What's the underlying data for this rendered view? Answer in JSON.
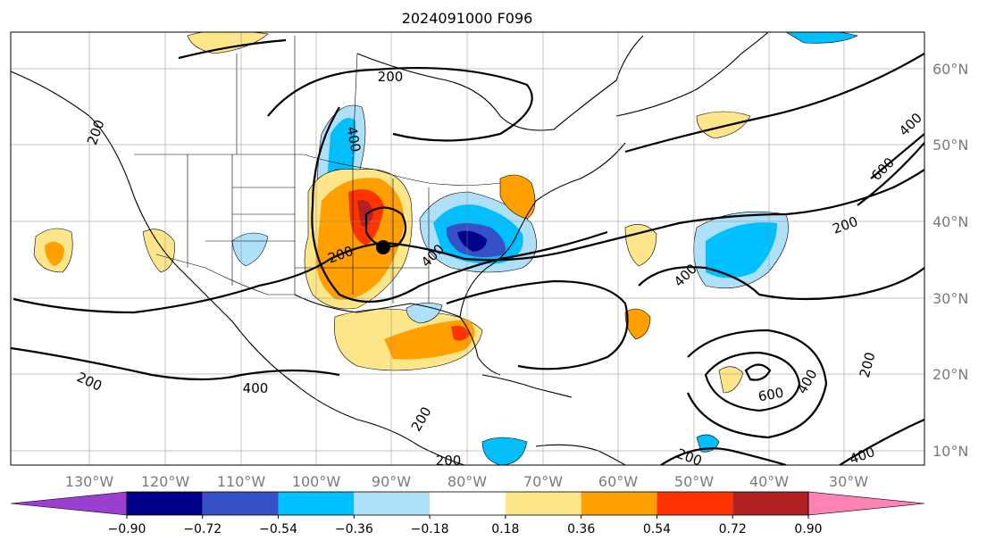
{
  "title": "2024091000 F096",
  "lon_ticks": [
    "130°W",
    "120°W",
    "110°W",
    "100°W",
    "90°W",
    "80°W",
    "70°W",
    "60°W",
    "50°W",
    "40°W",
    "30°W"
  ],
  "lat_ticks": [
    "60°N",
    "50°N",
    "40°N",
    "30°N",
    "20°N",
    "10°N"
  ],
  "colorbar": {
    "ticks": [
      "−0.90",
      "−0.72",
      "−0.54",
      "−0.36",
      "−0.18",
      "0.18",
      "0.36",
      "0.54",
      "0.72",
      "0.90"
    ],
    "colors": [
      "#9a3fd0",
      "#00008b",
      "#3650c8",
      "#00bfff",
      "#aee0fa",
      "#ffffff",
      "#fde68a",
      "#ff9f00",
      "#ff3300",
      "#b22222",
      "#ff82b4"
    ]
  },
  "contour_labels": [
    "200",
    "400",
    "200",
    "400",
    "200",
    "200",
    "400",
    "200",
    "400",
    "600",
    "200",
    "400",
    "400",
    "600",
    "200",
    "400",
    "200",
    "200",
    "200",
    "400"
  ],
  "marker": "storm-center"
}
